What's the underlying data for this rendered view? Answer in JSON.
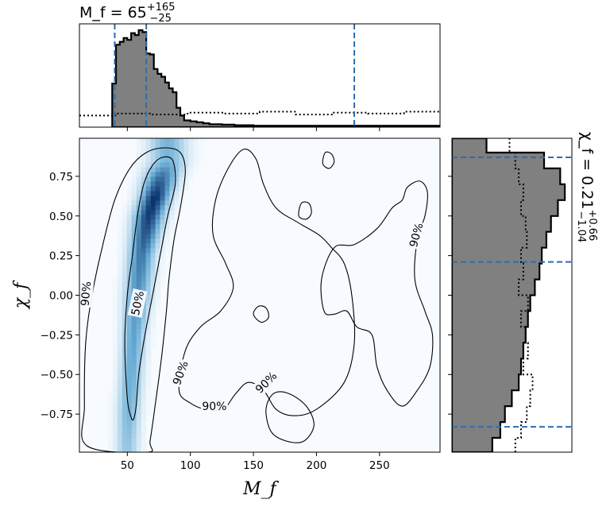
{
  "chart_data": [
    {
      "type": "heatmap",
      "panel": "joint posterior density",
      "xlabel": "M_f",
      "ylabel": "χ_f",
      "xlim": [
        12,
        298
      ],
      "ylim": [
        -0.99,
        0.99
      ],
      "xticks": [
        50,
        100,
        150,
        200,
        250
      ],
      "yticks": [
        -0.75,
        -0.5,
        -0.25,
        0.0,
        0.25,
        0.5,
        0.75
      ],
      "xtick_labels": [
        "50",
        "100",
        "150",
        "200",
        "250"
      ],
      "ytick_labels": [
        "−0.75",
        "−0.50",
        "−0.25",
        "0.00",
        "0.25",
        "0.50",
        "0.75"
      ],
      "colormap": "Blues",
      "density_ridge": [
        {
          "chi": -0.95,
          "mass": 50,
          "width": 6,
          "weight": 0.35
        },
        {
          "chi": -0.75,
          "mass": 51,
          "width": 6,
          "weight": 0.45
        },
        {
          "chi": -0.5,
          "mass": 53,
          "width": 6,
          "weight": 0.5
        },
        {
          "chi": -0.25,
          "mass": 55,
          "width": 6,
          "weight": 0.55
        },
        {
          "chi": 0.0,
          "mass": 58,
          "width": 7,
          "weight": 0.6
        },
        {
          "chi": 0.25,
          "mass": 61,
          "width": 7,
          "weight": 0.72
        },
        {
          "chi": 0.5,
          "mass": 67,
          "width": 8,
          "weight": 0.95
        },
        {
          "chi": 0.62,
          "mass": 72,
          "width": 8,
          "weight": 1.0
        },
        {
          "chi": 0.75,
          "mass": 77,
          "width": 9,
          "weight": 0.75
        },
        {
          "chi": 0.85,
          "mass": 82,
          "width": 10,
          "weight": 0.45
        }
      ],
      "contours": [
        {
          "level": "50%",
          "points": [
            [
              53,
              -0.77
            ],
            [
              50,
              -0.65
            ],
            [
              48,
              -0.3
            ],
            [
              50,
              0.0
            ],
            [
              54,
              0.25
            ],
            [
              58,
              0.5
            ],
            [
              63,
              0.7
            ],
            [
              70,
              0.82
            ],
            [
              78,
              0.87
            ],
            [
              86,
              0.85
            ],
            [
              88,
              0.7
            ],
            [
              82,
              0.5
            ],
            [
              76,
              0.25
            ],
            [
              70,
              0.0
            ],
            [
              64,
              -0.25
            ],
            [
              59,
              -0.5
            ],
            [
              57,
              -0.7
            ],
            [
              55,
              -0.78
            ]
          ]
        },
        {
          "level": "90%",
          "points": [
            [
              18,
              -0.95
            ],
            [
              16,
              -0.7
            ],
            [
              17,
              -0.3
            ],
            [
              22,
              0.0
            ],
            [
              30,
              0.3
            ],
            [
              40,
              0.6
            ],
            [
              52,
              0.8
            ],
            [
              65,
              0.9
            ],
            [
              80,
              0.93
            ],
            [
              92,
              0.9
            ],
            [
              96,
              0.78
            ],
            [
              92,
              0.55
            ],
            [
              87,
              0.35
            ],
            [
              83,
              0.1
            ],
            [
              81,
              -0.1
            ],
            [
              77,
              -0.4
            ],
            [
              72,
              -0.7
            ],
            [
              68,
              -0.92
            ],
            [
              66,
              -0.99
            ]
          ]
        },
        {
          "level": "90%",
          "points": [
            [
              91,
              -0.6
            ],
            [
              96,
              -0.35
            ],
            [
              108,
              -0.2
            ],
            [
              124,
              -0.1
            ],
            [
              134,
              0.05
            ],
            [
              128,
              0.2
            ],
            [
              118,
              0.38
            ],
            [
              120,
              0.6
            ],
            [
              130,
              0.8
            ],
            [
              142,
              0.92
            ],
            [
              152,
              0.86
            ],
            [
              158,
              0.7
            ],
            [
              168,
              0.55
            ],
            [
              185,
              0.46
            ],
            [
              202,
              0.38
            ],
            [
              212,
              0.3
            ],
            [
              222,
              0.2
            ],
            [
              228,
              0.0
            ],
            [
              230,
              -0.3
            ],
            [
              222,
              -0.55
            ],
            [
              200,
              -0.72
            ],
            [
              182,
              -0.76
            ],
            [
              168,
              -0.72
            ],
            [
              158,
              -0.6
            ],
            [
              146,
              -0.55
            ],
            [
              136,
              -0.62
            ],
            [
              126,
              -0.72
            ],
            [
              112,
              -0.72
            ],
            [
              100,
              -0.68
            ]
          ]
        },
        {
          "level": "90%",
          "points": [
            [
              206,
              -0.1
            ],
            [
              204,
              0.1
            ],
            [
              214,
              0.3
            ],
            [
              230,
              0.32
            ],
            [
              248,
              0.42
            ],
            [
              260,
              0.55
            ],
            [
              268,
              0.6
            ],
            [
              272,
              0.68
            ],
            [
              282,
              0.72
            ],
            [
              288,
              0.65
            ],
            [
              286,
              0.5
            ],
            [
              280,
              0.35
            ],
            [
              278,
              0.1
            ],
            [
              286,
              -0.1
            ],
            [
              292,
              -0.25
            ],
            [
              290,
              -0.45
            ],
            [
              280,
              -0.6
            ],
            [
              268,
              -0.7
            ],
            [
              256,
              -0.6
            ],
            [
              248,
              -0.45
            ],
            [
              244,
              -0.25
            ],
            [
              232,
              -0.2
            ],
            [
              224,
              -0.1
            ],
            [
              214,
              -0.12
            ]
          ]
        },
        {
          "level": "90%",
          "points": [
            [
              160,
              -0.72
            ],
            [
              166,
              -0.62
            ],
            [
              178,
              -0.62
            ],
            [
              192,
              -0.7
            ],
            [
              198,
              -0.82
            ],
            [
              190,
              -0.92
            ],
            [
              176,
              -0.92
            ],
            [
              164,
              -0.86
            ]
          ]
        },
        {
          "level": "island",
          "points": [
            [
              205,
              0.83
            ],
            [
              210,
              0.8
            ],
            [
              214,
              0.84
            ],
            [
              212,
              0.89
            ],
            [
              207,
              0.9
            ]
          ]
        },
        {
          "level": "island",
          "points": [
            [
              186,
              0.5
            ],
            [
              192,
              0.48
            ],
            [
              196,
              0.52
            ],
            [
              194,
              0.58
            ],
            [
              188,
              0.58
            ]
          ]
        },
        {
          "level": "island",
          "points": [
            [
              150,
              -0.12
            ],
            [
              156,
              -0.17
            ],
            [
              162,
              -0.14
            ],
            [
              160,
              -0.08
            ],
            [
              154,
              -0.07
            ]
          ]
        }
      ],
      "contour_labels": [
        {
          "text": "50%",
          "x": 58,
          "y": -0.05,
          "angle": -78
        },
        {
          "text": "90%",
          "x": 17,
          "y": 0.01,
          "angle": -85
        },
        {
          "text": "90%",
          "x": 92,
          "y": -0.49,
          "angle": -70
        },
        {
          "text": "90%",
          "x": 119,
          "y": -0.7,
          "angle": 0
        },
        {
          "text": "90%",
          "x": 160,
          "y": -0.55,
          "angle": -45
        },
        {
          "text": "90%",
          "x": 279,
          "y": 0.38,
          "angle": -75
        }
      ]
    },
    {
      "type": "histogram",
      "panel": "marginal M_f",
      "title": "M_f = 65",
      "title_sup": "+165",
      "title_sub": "−25",
      "xlim": [
        12,
        298
      ],
      "bins": [
        [
          38,
          41
        ],
        [
          41,
          44
        ],
        [
          44,
          47
        ],
        [
          47,
          50
        ],
        [
          50,
          53
        ],
        [
          53,
          56
        ],
        [
          56,
          59
        ],
        [
          59,
          62
        ],
        [
          62,
          65
        ],
        [
          65,
          68
        ],
        [
          68,
          71
        ],
        [
          71,
          74
        ],
        [
          74,
          77
        ],
        [
          77,
          80
        ],
        [
          80,
          83
        ],
        [
          83,
          86
        ],
        [
          86,
          89
        ],
        [
          89,
          92
        ],
        [
          92,
          95
        ],
        [
          95,
          100
        ],
        [
          100,
          105
        ],
        [
          105,
          110
        ],
        [
          110,
          115
        ],
        [
          115,
          125
        ],
        [
          125,
          135
        ],
        [
          135,
          150
        ],
        [
          150,
          298
        ]
      ],
      "posterior_counts": [
        0.45,
        0.85,
        0.88,
        0.92,
        0.9,
        0.97,
        0.95,
        1.0,
        0.98,
        0.76,
        0.75,
        0.6,
        0.55,
        0.52,
        0.46,
        0.4,
        0.36,
        0.2,
        0.12,
        0.07,
        0.06,
        0.05,
        0.04,
        0.03,
        0.025,
        0.02,
        0.015
      ],
      "prior_levels": [
        0.12,
        0.14,
        0.13,
        0.15,
        0.14,
        0.16,
        0.13,
        0.15,
        0.14,
        0.16
      ],
      "quantile_lines": [
        40,
        65,
        230
      ]
    },
    {
      "type": "histogram",
      "panel": "marginal χ_f",
      "title": "χ_f = 0.21",
      "title_sup": "+0.66",
      "title_sub": "−1.04",
      "ylim": [
        -0.99,
        0.99
      ],
      "bins": [
        [
          -0.99,
          -0.9
        ],
        [
          -0.9,
          -0.8
        ],
        [
          -0.8,
          -0.7
        ],
        [
          -0.7,
          -0.6
        ],
        [
          -0.6,
          -0.5
        ],
        [
          -0.5,
          -0.4
        ],
        [
          -0.4,
          -0.3
        ],
        [
          -0.3,
          -0.2
        ],
        [
          -0.2,
          -0.1
        ],
        [
          -0.1,
          0.0
        ],
        [
          0.0,
          0.1
        ],
        [
          0.1,
          0.2
        ],
        [
          0.2,
          0.3
        ],
        [
          0.3,
          0.4
        ],
        [
          0.4,
          0.5
        ],
        [
          0.5,
          0.6
        ],
        [
          0.6,
          0.7
        ],
        [
          0.7,
          0.8
        ],
        [
          0.8,
          0.9
        ],
        [
          0.9,
          0.99
        ]
      ],
      "posterior_counts": [
        0.35,
        0.42,
        0.46,
        0.52,
        0.58,
        0.6,
        0.62,
        0.64,
        0.66,
        0.68,
        0.72,
        0.76,
        0.78,
        0.82,
        0.86,
        0.92,
        0.98,
        0.94,
        0.8,
        0.3
      ],
      "prior_counts": [
        0.55,
        0.6,
        0.65,
        0.68,
        0.7,
        0.62,
        0.66,
        0.64,
        0.6,
        0.66,
        0.58,
        0.62,
        0.6,
        0.65,
        0.64,
        0.6,
        0.62,
        0.58,
        0.55,
        0.5
      ],
      "quantile_lines": [
        -0.83,
        0.21,
        0.87
      ]
    }
  ],
  "colors": {
    "posterior_fill": "#808080",
    "quantile_line": "#2b6fb0",
    "contour": "#000000",
    "heat_low": "#f7fbff",
    "heat_high": "#08306b"
  }
}
